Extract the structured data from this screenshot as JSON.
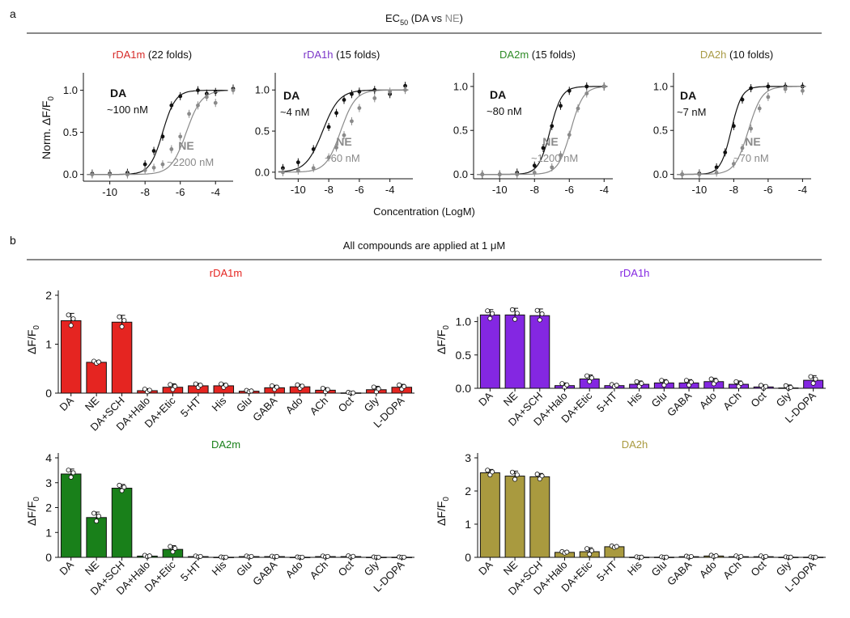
{
  "panel_a": {
    "label": "a",
    "header_main": "EC",
    "header_sub": "50",
    "header_tail": " (DA vs ",
    "header_ne": "NE",
    "header_close": ")",
    "ylabel_main": "Norm. ΔF/F",
    "ylabel_sub": "0",
    "xlabel": "Concentration (LogM)"
  },
  "panel_b": {
    "label": "b",
    "header": "All compounds are applied at 1 μM",
    "ylabel_main": "ΔF/F",
    "ylabel_sub": "0"
  },
  "chart_data": [
    {
      "id": "dr-rDA1m",
      "type": "line",
      "panel": "a",
      "title_name": "rDA1m",
      "title_rest": " (22 folds)",
      "title_color": "#d62a28",
      "xlim": [
        -11.5,
        -3
      ],
      "ylim": [
        -0.08,
        1.15
      ],
      "xticks": [
        "-10",
        "-8",
        "-6",
        "-4"
      ],
      "xtick_values": [
        -10,
        -8,
        -6,
        -4
      ],
      "yticks": [
        "0.0",
        "0.5",
        "1.0"
      ],
      "ytick_values": [
        0,
        0.5,
        1.0
      ],
      "series": [
        {
          "name": "DA",
          "label": "DA",
          "value_label": "~100 nM",
          "color": "#111111",
          "ec50_log": -7.0,
          "hill": 1.2,
          "points": [
            [
              -11,
              0.01
            ],
            [
              -10,
              0.01
            ],
            [
              -9,
              0.02
            ],
            [
              -8,
              0.12
            ],
            [
              -7.5,
              0.28
            ],
            [
              -7,
              0.45
            ],
            [
              -6.5,
              0.82
            ],
            [
              -6,
              0.93
            ],
            [
              -5,
              1.0
            ],
            [
              -4.5,
              0.96
            ],
            [
              -4,
              0.98
            ],
            [
              -3,
              1.02
            ]
          ]
        },
        {
          "name": "NE",
          "label": "NE",
          "value_label": "~2200 nM",
          "color": "#8a8a8a",
          "ec50_log": -5.66,
          "hill": 1.0,
          "points": [
            [
              -11,
              0.0
            ],
            [
              -10,
              0.0
            ],
            [
              -9,
              0.0
            ],
            [
              -8,
              0.05
            ],
            [
              -7.5,
              0.08
            ],
            [
              -7,
              0.12
            ],
            [
              -6.5,
              0.3
            ],
            [
              -6,
              0.45
            ],
            [
              -5.5,
              0.72
            ],
            [
              -5,
              0.82
            ],
            [
              -4.5,
              0.92
            ],
            [
              -4,
              0.85
            ],
            [
              -3,
              1.0
            ]
          ]
        }
      ]
    },
    {
      "id": "dr-rDA1h",
      "type": "line",
      "panel": "a",
      "title_name": "rDA1h",
      "title_rest": " (15 folds)",
      "title_color": "#7a35c8",
      "xlim": [
        -11.5,
        -2.5
      ],
      "ylim": [
        -0.08,
        1.15
      ],
      "xticks": [
        "-10",
        "-8",
        "-6",
        "-4"
      ],
      "xtick_values": [
        -10,
        -8,
        -6,
        -4
      ],
      "yticks": [
        "0.0",
        "0.5",
        "1.0"
      ],
      "ytick_values": [
        0,
        0.5,
        1.0
      ],
      "series": [
        {
          "name": "DA",
          "label": "DA",
          "value_label": "~4 nM",
          "color": "#111111",
          "ec50_log": -8.4,
          "hill": 0.8,
          "points": [
            [
              -11,
              0.05
            ],
            [
              -10,
              0.12
            ],
            [
              -9,
              0.28
            ],
            [
              -8,
              0.55
            ],
            [
              -7.5,
              0.72
            ],
            [
              -7,
              0.88
            ],
            [
              -6.5,
              0.95
            ],
            [
              -6,
              0.98
            ],
            [
              -5,
              1.0
            ],
            [
              -4,
              0.95
            ],
            [
              -3,
              1.05
            ]
          ]
        },
        {
          "name": "NE",
          "label": "NE",
          "value_label": "~60 nM",
          "color": "#8a8a8a",
          "ec50_log": -7.22,
          "hill": 0.9,
          "points": [
            [
              -11,
              0.0
            ],
            [
              -10,
              0.02
            ],
            [
              -9,
              0.05
            ],
            [
              -8,
              0.18
            ],
            [
              -7.5,
              0.3
            ],
            [
              -7,
              0.45
            ],
            [
              -6.5,
              0.62
            ],
            [
              -6,
              0.78
            ],
            [
              -5,
              0.9
            ],
            [
              -4,
              0.98
            ],
            [
              -3,
              1.0
            ]
          ]
        }
      ]
    },
    {
      "id": "dr-DA2m",
      "type": "line",
      "panel": "a",
      "title_name": "DA2m",
      "title_rest": " (15 folds)",
      "title_color": "#2e8b26",
      "xlim": [
        -11.5,
        -3.5
      ],
      "ylim": [
        -0.05,
        1.1
      ],
      "xticks": [
        "-10",
        "-8",
        "-6",
        "-4"
      ],
      "xtick_values": [
        -10,
        -8,
        -6,
        -4
      ],
      "yticks": [
        "0.0",
        "0.5",
        "1.0"
      ],
      "ytick_values": [
        0,
        0.5,
        1.0
      ],
      "series": [
        {
          "name": "DA",
          "label": "DA",
          "value_label": "~80 nM",
          "color": "#111111",
          "ec50_log": -7.1,
          "hill": 1.3,
          "points": [
            [
              -11,
              0.0
            ],
            [
              -10,
              0.0
            ],
            [
              -9,
              0.02
            ],
            [
              -8,
              0.1
            ],
            [
              -7.5,
              0.3
            ],
            [
              -7,
              0.55
            ],
            [
              -6.5,
              0.78
            ],
            [
              -6,
              0.95
            ],
            [
              -5,
              1.0
            ],
            [
              -4,
              1.0
            ]
          ]
        },
        {
          "name": "NE",
          "label": "NE",
          "value_label": "~1200 nM",
          "color": "#8a8a8a",
          "ec50_log": -5.92,
          "hill": 1.2,
          "points": [
            [
              -11,
              0.0
            ],
            [
              -10,
              0.0
            ],
            [
              -9,
              0.0
            ],
            [
              -8,
              0.02
            ],
            [
              -7,
              0.08
            ],
            [
              -6.5,
              0.22
            ],
            [
              -6,
              0.45
            ],
            [
              -5.5,
              0.75
            ],
            [
              -5,
              0.92
            ],
            [
              -4,
              1.0
            ]
          ]
        }
      ]
    },
    {
      "id": "dr-DA2h",
      "type": "line",
      "panel": "a",
      "title_name": "DA2h",
      "title_rest": " (10 folds)",
      "title_color": "#a89a44",
      "xlim": [
        -11.5,
        -3.5
      ],
      "ylim": [
        -0.05,
        1.1
      ],
      "xticks": [
        "-10",
        "-8",
        "-6",
        "-4"
      ],
      "xtick_values": [
        -10,
        -8,
        -6,
        -4
      ],
      "yticks": [
        "0.0",
        "0.5",
        "1.0"
      ],
      "ytick_values": [
        0,
        0.5,
        1.0
      ],
      "series": [
        {
          "name": "DA",
          "label": "DA",
          "value_label": "~7 nM",
          "color": "#111111",
          "ec50_log": -8.15,
          "hill": 1.4,
          "points": [
            [
              -11,
              0.0
            ],
            [
              -10,
              0.01
            ],
            [
              -9,
              0.08
            ],
            [
              -8.5,
              0.25
            ],
            [
              -8,
              0.55
            ],
            [
              -7.5,
              0.85
            ],
            [
              -7,
              0.98
            ],
            [
              -6,
              1.0
            ],
            [
              -5,
              1.0
            ],
            [
              -4,
              1.0
            ]
          ]
        },
        {
          "name": "NE",
          "label": "NE",
          "value_label": "~70 nM",
          "color": "#8a8a8a",
          "ec50_log": -7.15,
          "hill": 1.1,
          "points": [
            [
              -11,
              0.0
            ],
            [
              -10,
              0.0
            ],
            [
              -9,
              0.02
            ],
            [
              -8,
              0.12
            ],
            [
              -7.5,
              0.3
            ],
            [
              -7,
              0.52
            ],
            [
              -6.5,
              0.75
            ],
            [
              -6,
              0.88
            ],
            [
              -5,
              0.97
            ],
            [
              -4,
              0.95
            ]
          ]
        }
      ]
    },
    {
      "id": "bar-rDA1m",
      "type": "bar",
      "panel": "b",
      "title": "rDA1m",
      "color": "#e52521",
      "categories": [
        "DA",
        "NE",
        "DA+SCH",
        "DA+Halo",
        "DA+Etic",
        "5-HT",
        "His",
        "Glu",
        "GABA",
        "Ado",
        "ACh",
        "Oct",
        "Gly",
        "L-DOPA"
      ],
      "values": [
        1.48,
        0.63,
        1.45,
        0.05,
        0.12,
        0.15,
        0.15,
        0.04,
        0.11,
        0.13,
        0.06,
        0.0,
        0.07,
        0.12
      ],
      "errors": [
        0.15,
        0.03,
        0.14,
        0.04,
        0.07,
        0.05,
        0.05,
        0.02,
        0.05,
        0.05,
        0.05,
        0.02,
        0.07,
        0.06
      ],
      "ylim": [
        0,
        2
      ],
      "yticks": [
        "0",
        "1",
        "2"
      ],
      "ytick_values": [
        0,
        1,
        2
      ]
    },
    {
      "id": "bar-rDA1h",
      "type": "bar",
      "panel": "b",
      "title": "rDA1h",
      "color": "#8427e2",
      "categories": [
        "DA",
        "NE",
        "DA+SCH",
        "DA+Halo",
        "DA+Etic",
        "5-HT",
        "His",
        "Glu",
        "GABA",
        "Ado",
        "ACh",
        "Oct",
        "Gly",
        "L-DOPA"
      ],
      "values": [
        1.1,
        1.1,
        1.09,
        0.04,
        0.14,
        0.04,
        0.06,
        0.08,
        0.08,
        0.1,
        0.06,
        0.02,
        0.0,
        0.12
      ],
      "errors": [
        0.08,
        0.1,
        0.1,
        0.04,
        0.06,
        0.02,
        0.05,
        0.05,
        0.05,
        0.05,
        0.05,
        0.03,
        0.05,
        0.07
      ],
      "ylim": [
        0,
        1.25
      ],
      "yticks": [
        "0.0",
        "0.5",
        "1.0"
      ],
      "ytick_values": [
        0,
        0.5,
        1.0
      ]
    },
    {
      "id": "bar-DA2m",
      "type": "bar",
      "panel": "b",
      "title": "DA2m",
      "color": "#19801a",
      "categories": [
        "DA",
        "NE",
        "DA+SCH",
        "DA+Halo",
        "DA+Etic",
        "5-HT",
        "His",
        "Glu",
        "GABA",
        "Ado",
        "ACh",
        "Oct",
        "Gly",
        "L-DOPA"
      ],
      "values": [
        3.35,
        1.6,
        2.78,
        0.05,
        0.32,
        0.03,
        0.0,
        0.03,
        0.03,
        0.0,
        0.03,
        0.03,
        0.0,
        0.0
      ],
      "errors": [
        0.2,
        0.22,
        0.15,
        0.04,
        0.15,
        0.03,
        0.02,
        0.03,
        0.02,
        0.02,
        0.03,
        0.04,
        0.02,
        0.02
      ],
      "ylim": [
        0,
        4
      ],
      "yticks": [
        "0",
        "1",
        "2",
        "3",
        "4"
      ],
      "ytick_values": [
        0,
        1,
        2,
        3,
        4
      ]
    },
    {
      "id": "bar-DA2h",
      "type": "bar",
      "panel": "b",
      "title": "DA2h",
      "color": "#a99a3f",
      "categories": [
        "DA",
        "NE",
        "DA+SCH",
        "DA+Halo",
        "DA+Etic",
        "5-HT",
        "His",
        "Glu",
        "GABA",
        "Ado",
        "ACh",
        "Oct",
        "Gly",
        "L-DOPA"
      ],
      "values": [
        2.55,
        2.45,
        2.43,
        0.15,
        0.17,
        0.32,
        0.0,
        0.0,
        0.02,
        0.04,
        0.02,
        0.02,
        0.0,
        0.0
      ],
      "errors": [
        0.1,
        0.15,
        0.1,
        0.03,
        0.12,
        0.03,
        0.02,
        0.02,
        0.02,
        0.03,
        0.03,
        0.03,
        0.02,
        0.02
      ],
      "ylim": [
        0,
        3
      ],
      "yticks": [
        "0",
        "1",
        "2",
        "3"
      ],
      "ytick_values": [
        0,
        1,
        2,
        3
      ]
    }
  ]
}
